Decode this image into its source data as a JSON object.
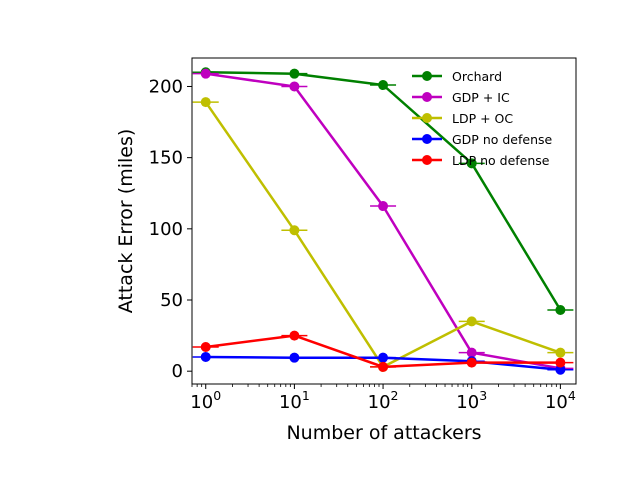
{
  "chart_data": {
    "type": "line",
    "title": "",
    "xlabel": "Number of attackers",
    "ylabel": "Attack Error (miles)",
    "xscale": "log",
    "xlim": [
      0.7,
      15000
    ],
    "ylim": [
      -9,
      220
    ],
    "grid": false,
    "legend_position": "top-right",
    "x": [
      1,
      10,
      100,
      1000,
      10000
    ],
    "x_tick_labels": [
      {
        "base": "10",
        "exp": "0"
      },
      {
        "base": "10",
        "exp": "1"
      },
      {
        "base": "10",
        "exp": "2"
      },
      {
        "base": "10",
        "exp": "3"
      },
      {
        "base": "10",
        "exp": "4"
      }
    ],
    "y_ticks": [
      0,
      50,
      100,
      150,
      200
    ],
    "y_tick_labels": [
      "0",
      "50",
      "100",
      "150",
      "200"
    ],
    "series": [
      {
        "name": "Orchard",
        "color": "#008000",
        "values": [
          210,
          209,
          201,
          146,
          43
        ]
      },
      {
        "name": "GDP + IC",
        "color": "#bf00bf",
        "values": [
          209,
          200,
          116,
          13,
          2
        ]
      },
      {
        "name": "LDP + OC",
        "color": "#bfbf00",
        "values": [
          189,
          99,
          3,
          35,
          13
        ]
      },
      {
        "name": "GDP no defense",
        "color": "#0000ff",
        "values": [
          10,
          9.5,
          9.5,
          7,
          1
        ]
      },
      {
        "name": "LDP no defense",
        "color": "#ff0000",
        "values": [
          17,
          25,
          3,
          6,
          6
        ]
      }
    ]
  }
}
